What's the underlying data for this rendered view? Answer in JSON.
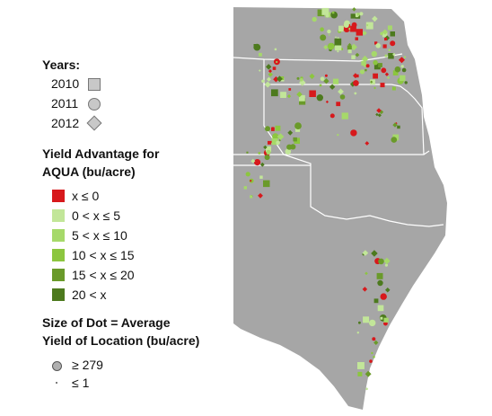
{
  "legend": {
    "years_title": "Years:",
    "years": [
      {
        "label": "2010",
        "shape": "square"
      },
      {
        "label": "2011",
        "shape": "circle"
      },
      {
        "label": "2012",
        "shape": "diamond"
      }
    ],
    "yield_title_line1": "Yield Advantage for",
    "yield_title_line2": "AQUA (bu/acre)",
    "yield_classes": [
      {
        "label": "x ≤ 0",
        "color": "#d7191c"
      },
      {
        "label": "0 < x ≤ 5",
        "color": "#c2e699"
      },
      {
        "label": "5 < x ≤ 10",
        "color": "#a6d96a"
      },
      {
        "label": "10 < x ≤ 15",
        "color": "#8cc63f"
      },
      {
        "label": "15 < x ≤ 20",
        "color": "#6a9a2a"
      },
      {
        "label": "20 < x",
        "color": "#4d7a1e"
      }
    ],
    "size_title_line1": "Size of Dot = Average",
    "size_title_line2": "Yield of Location (bu/acre)",
    "sizes": [
      {
        "label": "≥ 279"
      },
      {
        "label": "≤ 1"
      }
    ]
  },
  "map_colors": {
    "land": "#a6a6a6",
    "border": "#ffffff"
  }
}
